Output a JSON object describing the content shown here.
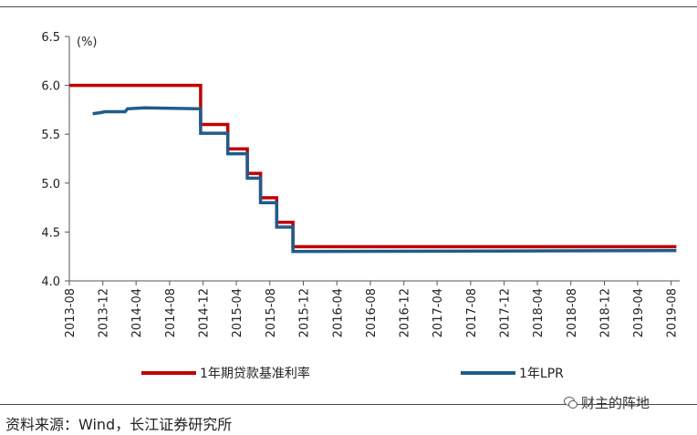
{
  "chart_data": {
    "type": "line",
    "ylabel": "(%)",
    "ylim": [
      4.0,
      6.5
    ],
    "yticks": [
      "4.0",
      "4.5",
      "5.0",
      "5.5",
      "6.0",
      "6.5"
    ],
    "xticks": [
      "2013-08",
      "2013-12",
      "2014-04",
      "2014-08",
      "2014-12",
      "2015-04",
      "2015-08",
      "2015-12",
      "2016-04",
      "2016-08",
      "2016-12",
      "2017-04",
      "2017-08",
      "2017-12",
      "2018-04",
      "2018-08",
      "2018-12",
      "2019-04",
      "2019-08"
    ],
    "xlim": [
      "2013-08-01",
      "2019-09-01"
    ],
    "grid": false,
    "legend_position": "bottom",
    "series": [
      {
        "name": "1年期贷款基准利率",
        "color": "#c00000",
        "points": [
          [
            "2013-08-01",
            6.0
          ],
          [
            "2014-11-22",
            6.0
          ],
          [
            "2014-11-22",
            5.6
          ],
          [
            "2015-03-01",
            5.6
          ],
          [
            "2015-03-01",
            5.35
          ],
          [
            "2015-05-11",
            5.35
          ],
          [
            "2015-05-11",
            5.1
          ],
          [
            "2015-06-28",
            5.1
          ],
          [
            "2015-06-28",
            4.85
          ],
          [
            "2015-08-26",
            4.85
          ],
          [
            "2015-08-26",
            4.6
          ],
          [
            "2015-10-24",
            4.6
          ],
          [
            "2015-10-24",
            4.35
          ],
          [
            "2019-08-20",
            4.35
          ]
        ]
      },
      {
        "name": "1年LPR",
        "color": "#1f5c8a",
        "points": [
          [
            "2013-10-25",
            5.71
          ],
          [
            "2013-11-20",
            5.72
          ],
          [
            "2013-12-10",
            5.73
          ],
          [
            "2014-02-20",
            5.73
          ],
          [
            "2014-03-01",
            5.76
          ],
          [
            "2014-05-01",
            5.77
          ],
          [
            "2014-11-22",
            5.76
          ],
          [
            "2014-11-22",
            5.51
          ],
          [
            "2015-03-01",
            5.51
          ],
          [
            "2015-03-01",
            5.3
          ],
          [
            "2015-05-11",
            5.3
          ],
          [
            "2015-05-11",
            5.05
          ],
          [
            "2015-06-28",
            5.05
          ],
          [
            "2015-06-28",
            4.8
          ],
          [
            "2015-08-26",
            4.8
          ],
          [
            "2015-08-26",
            4.55
          ],
          [
            "2015-10-24",
            4.55
          ],
          [
            "2015-10-24",
            4.3
          ],
          [
            "2019-08-20",
            4.31
          ]
        ]
      }
    ]
  },
  "footer": {
    "source": "资料来源：Wind，长江证券研究所",
    "watermark": "财主的阵地",
    "watermark_icon": "wechat-icon"
  }
}
